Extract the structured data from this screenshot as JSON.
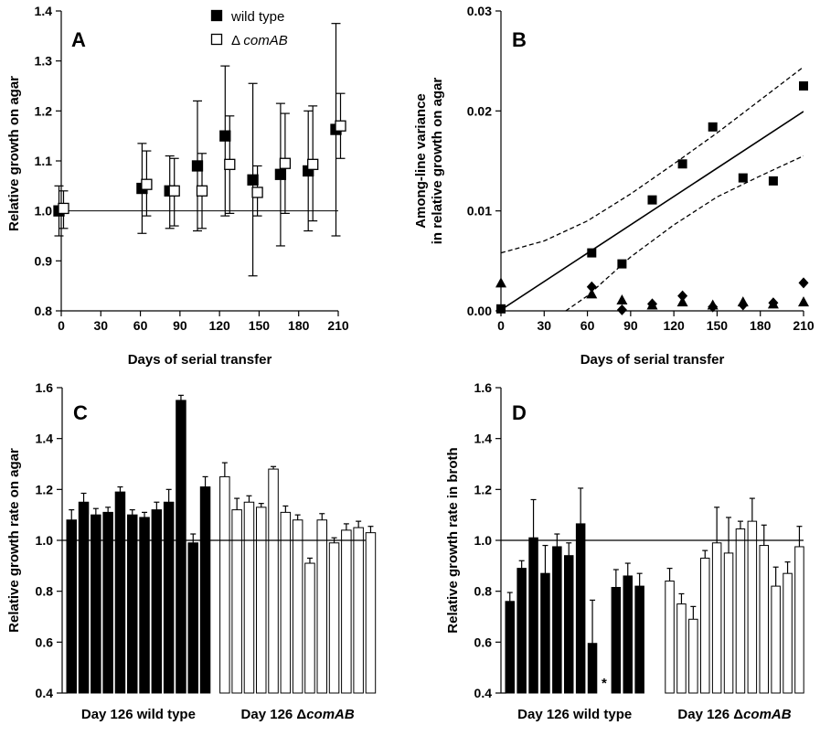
{
  "chart_data": [
    {
      "panel": "A",
      "type": "scatter",
      "xlabel": "Days of serial transfer",
      "ylabel": "Relative growth on agar",
      "xlim": [
        0,
        210
      ],
      "ylim": [
        0.8,
        1.4
      ],
      "xticks": [
        0,
        30,
        60,
        90,
        120,
        150,
        180,
        210
      ],
      "yticks": [
        0.8,
        0.9,
        1.0,
        1.1,
        1.2,
        1.3,
        1.4
      ],
      "reference_line": 1.0,
      "legend_position": "top-right",
      "series": [
        {
          "name": "wild type",
          "marker": "filled-square",
          "points": [
            {
              "x": 0,
              "y": 1.0,
              "lo": 0.95,
              "hi": 1.05
            },
            {
              "x": 63,
              "y": 1.045,
              "lo": 0.955,
              "hi": 1.135
            },
            {
              "x": 84,
              "y": 1.04,
              "lo": 0.965,
              "hi": 1.11
            },
            {
              "x": 105,
              "y": 1.09,
              "lo": 0.96,
              "hi": 1.22
            },
            {
              "x": 126,
              "y": 1.15,
              "lo": 0.99,
              "hi": 1.29
            },
            {
              "x": 147,
              "y": 1.062,
              "lo": 0.87,
              "hi": 1.255
            },
            {
              "x": 168,
              "y": 1.073,
              "lo": 0.93,
              "hi": 1.215
            },
            {
              "x": 189,
              "y": 1.08,
              "lo": 0.96,
              "hi": 1.2
            },
            {
              "x": 210,
              "y": 1.163,
              "lo": 0.95,
              "hi": 1.375
            }
          ]
        },
        {
          "name_prefix": "Δ ",
          "name": "comAB",
          "marker": "open-square",
          "points": [
            {
              "x": 0,
              "y": 1.005,
              "lo": 0.965,
              "hi": 1.04
            },
            {
              "x": 63,
              "y": 1.053,
              "lo": 0.99,
              "hi": 1.12
            },
            {
              "x": 84,
              "y": 1.04,
              "lo": 0.97,
              "hi": 1.105
            },
            {
              "x": 105,
              "y": 1.04,
              "lo": 0.965,
              "hi": 1.115
            },
            {
              "x": 126,
              "y": 1.093,
              "lo": 0.995,
              "hi": 1.19
            },
            {
              "x": 147,
              "y": 1.037,
              "lo": 0.99,
              "hi": 1.09
            },
            {
              "x": 168,
              "y": 1.095,
              "lo": 0.995,
              "hi": 1.195
            },
            {
              "x": 189,
              "y": 1.093,
              "lo": 0.98,
              "hi": 1.21
            },
            {
              "x": 210,
              "y": 1.17,
              "lo": 1.105,
              "hi": 1.235
            }
          ]
        }
      ]
    },
    {
      "panel": "B",
      "type": "scatter",
      "xlabel": "Days of serial transfer",
      "ylabel_line1": "Among-line  variance",
      "ylabel_line2": "in relative growth on agar",
      "xlim": [
        0,
        210
      ],
      "ylim": [
        0,
        0.03
      ],
      "xticks": [
        0,
        30,
        60,
        90,
        120,
        150,
        180,
        210
      ],
      "yticks": [
        "0.00",
        "0.01",
        "0.02",
        "0.03"
      ],
      "series": [
        {
          "marker": "square",
          "points": [
            [
              0,
              0.0002
            ],
            [
              63,
              0.0058
            ],
            [
              84,
              0.0047
            ],
            [
              105,
              0.0111
            ],
            [
              126,
              0.0147
            ],
            [
              147,
              0.0184
            ],
            [
              168,
              0.0133
            ],
            [
              189,
              0.013
            ],
            [
              210,
              0.0225
            ]
          ]
        },
        {
          "marker": "triangle",
          "points": [
            [
              0,
              0.0028
            ],
            [
              63,
              0.0017
            ],
            [
              84,
              0.0011
            ],
            [
              105,
              0.0006
            ],
            [
              126,
              0.0009
            ],
            [
              147,
              0.0006
            ],
            [
              168,
              0.0009
            ],
            [
              189,
              0.0007
            ],
            [
              210,
              0.0009
            ]
          ]
        },
        {
          "marker": "diamond",
          "points": [
            [
              63,
              0.0024
            ],
            [
              84,
              0.0001
            ],
            [
              105,
              0.0007
            ],
            [
              126,
              0.0015
            ],
            [
              147,
              0.0004
            ],
            [
              168,
              0.0006
            ],
            [
              189,
              0.0008
            ],
            [
              210,
              0.0028
            ]
          ]
        }
      ],
      "regression": {
        "intercept": 0.0001,
        "slope": 9.45e-05
      },
      "confidence_band": {
        "upper": [
          [
            0,
            0.0058
          ],
          [
            30,
            0.007
          ],
          [
            60,
            0.009
          ],
          [
            90,
            0.0117
          ],
          [
            120,
            0.0147
          ],
          [
            150,
            0.0178
          ],
          [
            180,
            0.0211
          ],
          [
            210,
            0.0244
          ]
        ],
        "lower": [
          [
            45,
            0.0
          ],
          [
            60,
            0.0015
          ],
          [
            90,
            0.0054
          ],
          [
            120,
            0.0086
          ],
          [
            150,
            0.0114
          ],
          [
            180,
            0.0135
          ],
          [
            210,
            0.0155
          ]
        ]
      }
    },
    {
      "panel": "C",
      "type": "bar",
      "ylabel": "Relative growth rate on agar",
      "ylim": [
        0.4,
        1.6
      ],
      "yticks": [
        0.4,
        0.6,
        0.8,
        1.0,
        1.2,
        1.4,
        1.6
      ],
      "reference_line": 1.0,
      "groups": [
        {
          "label_prefix": "Day 126 wild type",
          "label_italic": "",
          "fill": "#000000",
          "values": [
            1.08,
            1.15,
            1.1,
            1.11,
            1.19,
            1.1,
            1.09,
            1.12,
            1.15,
            1.55,
            0.99,
            1.21
          ],
          "errors": [
            0.04,
            0.035,
            0.025,
            0.02,
            0.02,
            0.02,
            0.02,
            0.03,
            0.05,
            0.02,
            0.035,
            0.04
          ]
        },
        {
          "label_prefix": "Day 126 Δ",
          "label_italic": "comAB",
          "fill": "#ffffff",
          "values": [
            1.25,
            1.12,
            1.15,
            1.13,
            1.28,
            1.11,
            1.08,
            0.91,
            1.08,
            0.99,
            1.04,
            1.05,
            1.03
          ],
          "errors": [
            0.055,
            0.045,
            0.025,
            0.015,
            0.01,
            0.025,
            0.02,
            0.02,
            0.025,
            0.02,
            0.025,
            0.025,
            0.025
          ]
        }
      ]
    },
    {
      "panel": "D",
      "type": "bar",
      "ylabel": "Relative growth rate in broth",
      "ylim": [
        0.4,
        1.6
      ],
      "yticks": [
        0.4,
        0.6,
        0.8,
        1.0,
        1.2,
        1.4,
        1.6
      ],
      "reference_line": 1.0,
      "annotation": "*",
      "annotation_slot": 8,
      "groups": [
        {
          "label_prefix": "Day 126 wild type",
          "label_italic": "",
          "fill": "#000000",
          "values": [
            0.76,
            0.89,
            1.01,
            0.87,
            0.975,
            0.94,
            1.065,
            0.595,
            null,
            0.815,
            0.86,
            0.82
          ],
          "errors": [
            0.035,
            0.03,
            0.15,
            0.11,
            0.05,
            0.05,
            0.14,
            0.17,
            null,
            0.07,
            0.05,
            0.05
          ]
        },
        {
          "label_prefix": "Day 126 Δ",
          "label_italic": "comAB",
          "fill": "#ffffff",
          "values": [
            0.84,
            0.75,
            0.69,
            0.93,
            0.99,
            0.95,
            1.045,
            1.075,
            0.98,
            0.82,
            0.87,
            0.975
          ],
          "errors": [
            0.05,
            0.04,
            0.05,
            0.03,
            0.14,
            0.14,
            0.03,
            0.09,
            0.08,
            0.075,
            0.045,
            0.08
          ]
        }
      ]
    }
  ],
  "panel_labels": [
    "A",
    "B",
    "C",
    "D"
  ],
  "legend": {
    "wild_type": "wild type",
    "mutant_prefix": "Δ ",
    "mutant_italic": "comAB"
  }
}
